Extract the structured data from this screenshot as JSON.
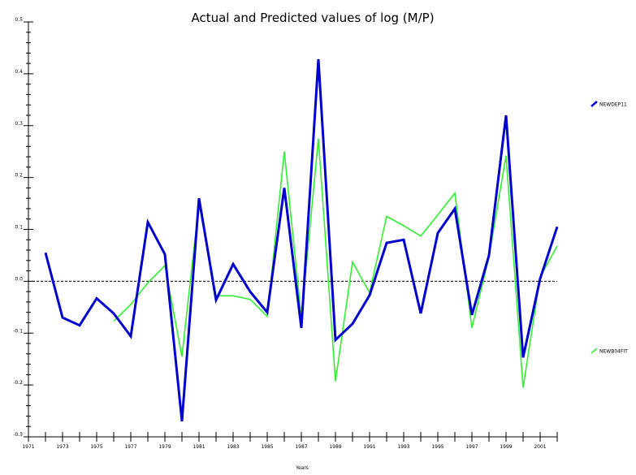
{
  "chart_data": {
    "type": "line",
    "title": "Actual and Predicted values of log (M/P)",
    "xlabel": "Years",
    "ylabel": "",
    "xlim": [
      1971,
      2002
    ],
    "ylim": [
      -0.3,
      0.5
    ],
    "x_ticks_labeled": [
      1971,
      1973,
      1975,
      1977,
      1979,
      1981,
      1983,
      1985,
      1987,
      1989,
      1991,
      1993,
      1995,
      1997,
      1999,
      2001
    ],
    "y_ticks": [
      -0.3,
      -0.2,
      -0.1,
      0.0,
      0.1,
      0.2,
      0.3,
      0.4,
      0.5
    ],
    "y_tick_labels": [
      "-0.3",
      "-0.2",
      "-0.1",
      "0.0",
      "0.1",
      "0.2",
      "0.3",
      "0.4",
      "0.5"
    ],
    "zero_line": 0,
    "grid": false,
    "legend_position": "right",
    "series": [
      {
        "name": "NEWDEP11",
        "color": "#0000cc",
        "x": [
          1972,
          1973,
          1974,
          1975,
          1976,
          1977,
          1978,
          1979,
          1980,
          1981,
          1982,
          1983,
          1984,
          1985,
          1986,
          1987,
          1988,
          1989,
          1990,
          1991,
          1992,
          1993,
          1994,
          1995,
          1996,
          1997,
          1998,
          1999,
          2000,
          2001,
          2002
        ],
        "values": [
          0.055,
          -0.07,
          -0.085,
          -0.033,
          -0.062,
          -0.106,
          0.114,
          0.052,
          -0.27,
          0.16,
          -0.036,
          0.033,
          -0.02,
          -0.06,
          0.18,
          -0.09,
          0.428,
          -0.113,
          -0.082,
          -0.027,
          0.074,
          0.08,
          -0.062,
          0.093,
          0.14,
          -0.065,
          0.05,
          0.32,
          -0.147,
          0.005,
          0.105
        ]
      },
      {
        "name": "NEWB04FIT",
        "color": "#33ee33",
        "x": [
          1976,
          1977,
          1978,
          1979,
          1980,
          1981,
          1982,
          1983,
          1984,
          1985,
          1986,
          1987,
          1988,
          1989,
          1990,
          1991,
          1992,
          1993,
          1994,
          1995,
          1996,
          1997,
          1998,
          1999,
          2000,
          2001,
          2002
        ],
        "values": [
          -0.077,
          -0.045,
          -0.003,
          0.03,
          -0.145,
          0.15,
          -0.028,
          -0.028,
          -0.035,
          -0.068,
          0.25,
          -0.07,
          0.275,
          -0.193,
          0.037,
          -0.022,
          0.125,
          0.107,
          0.087,
          0.128,
          0.17,
          -0.09,
          0.047,
          0.242,
          -0.205,
          0.008,
          0.068
        ]
      }
    ]
  }
}
